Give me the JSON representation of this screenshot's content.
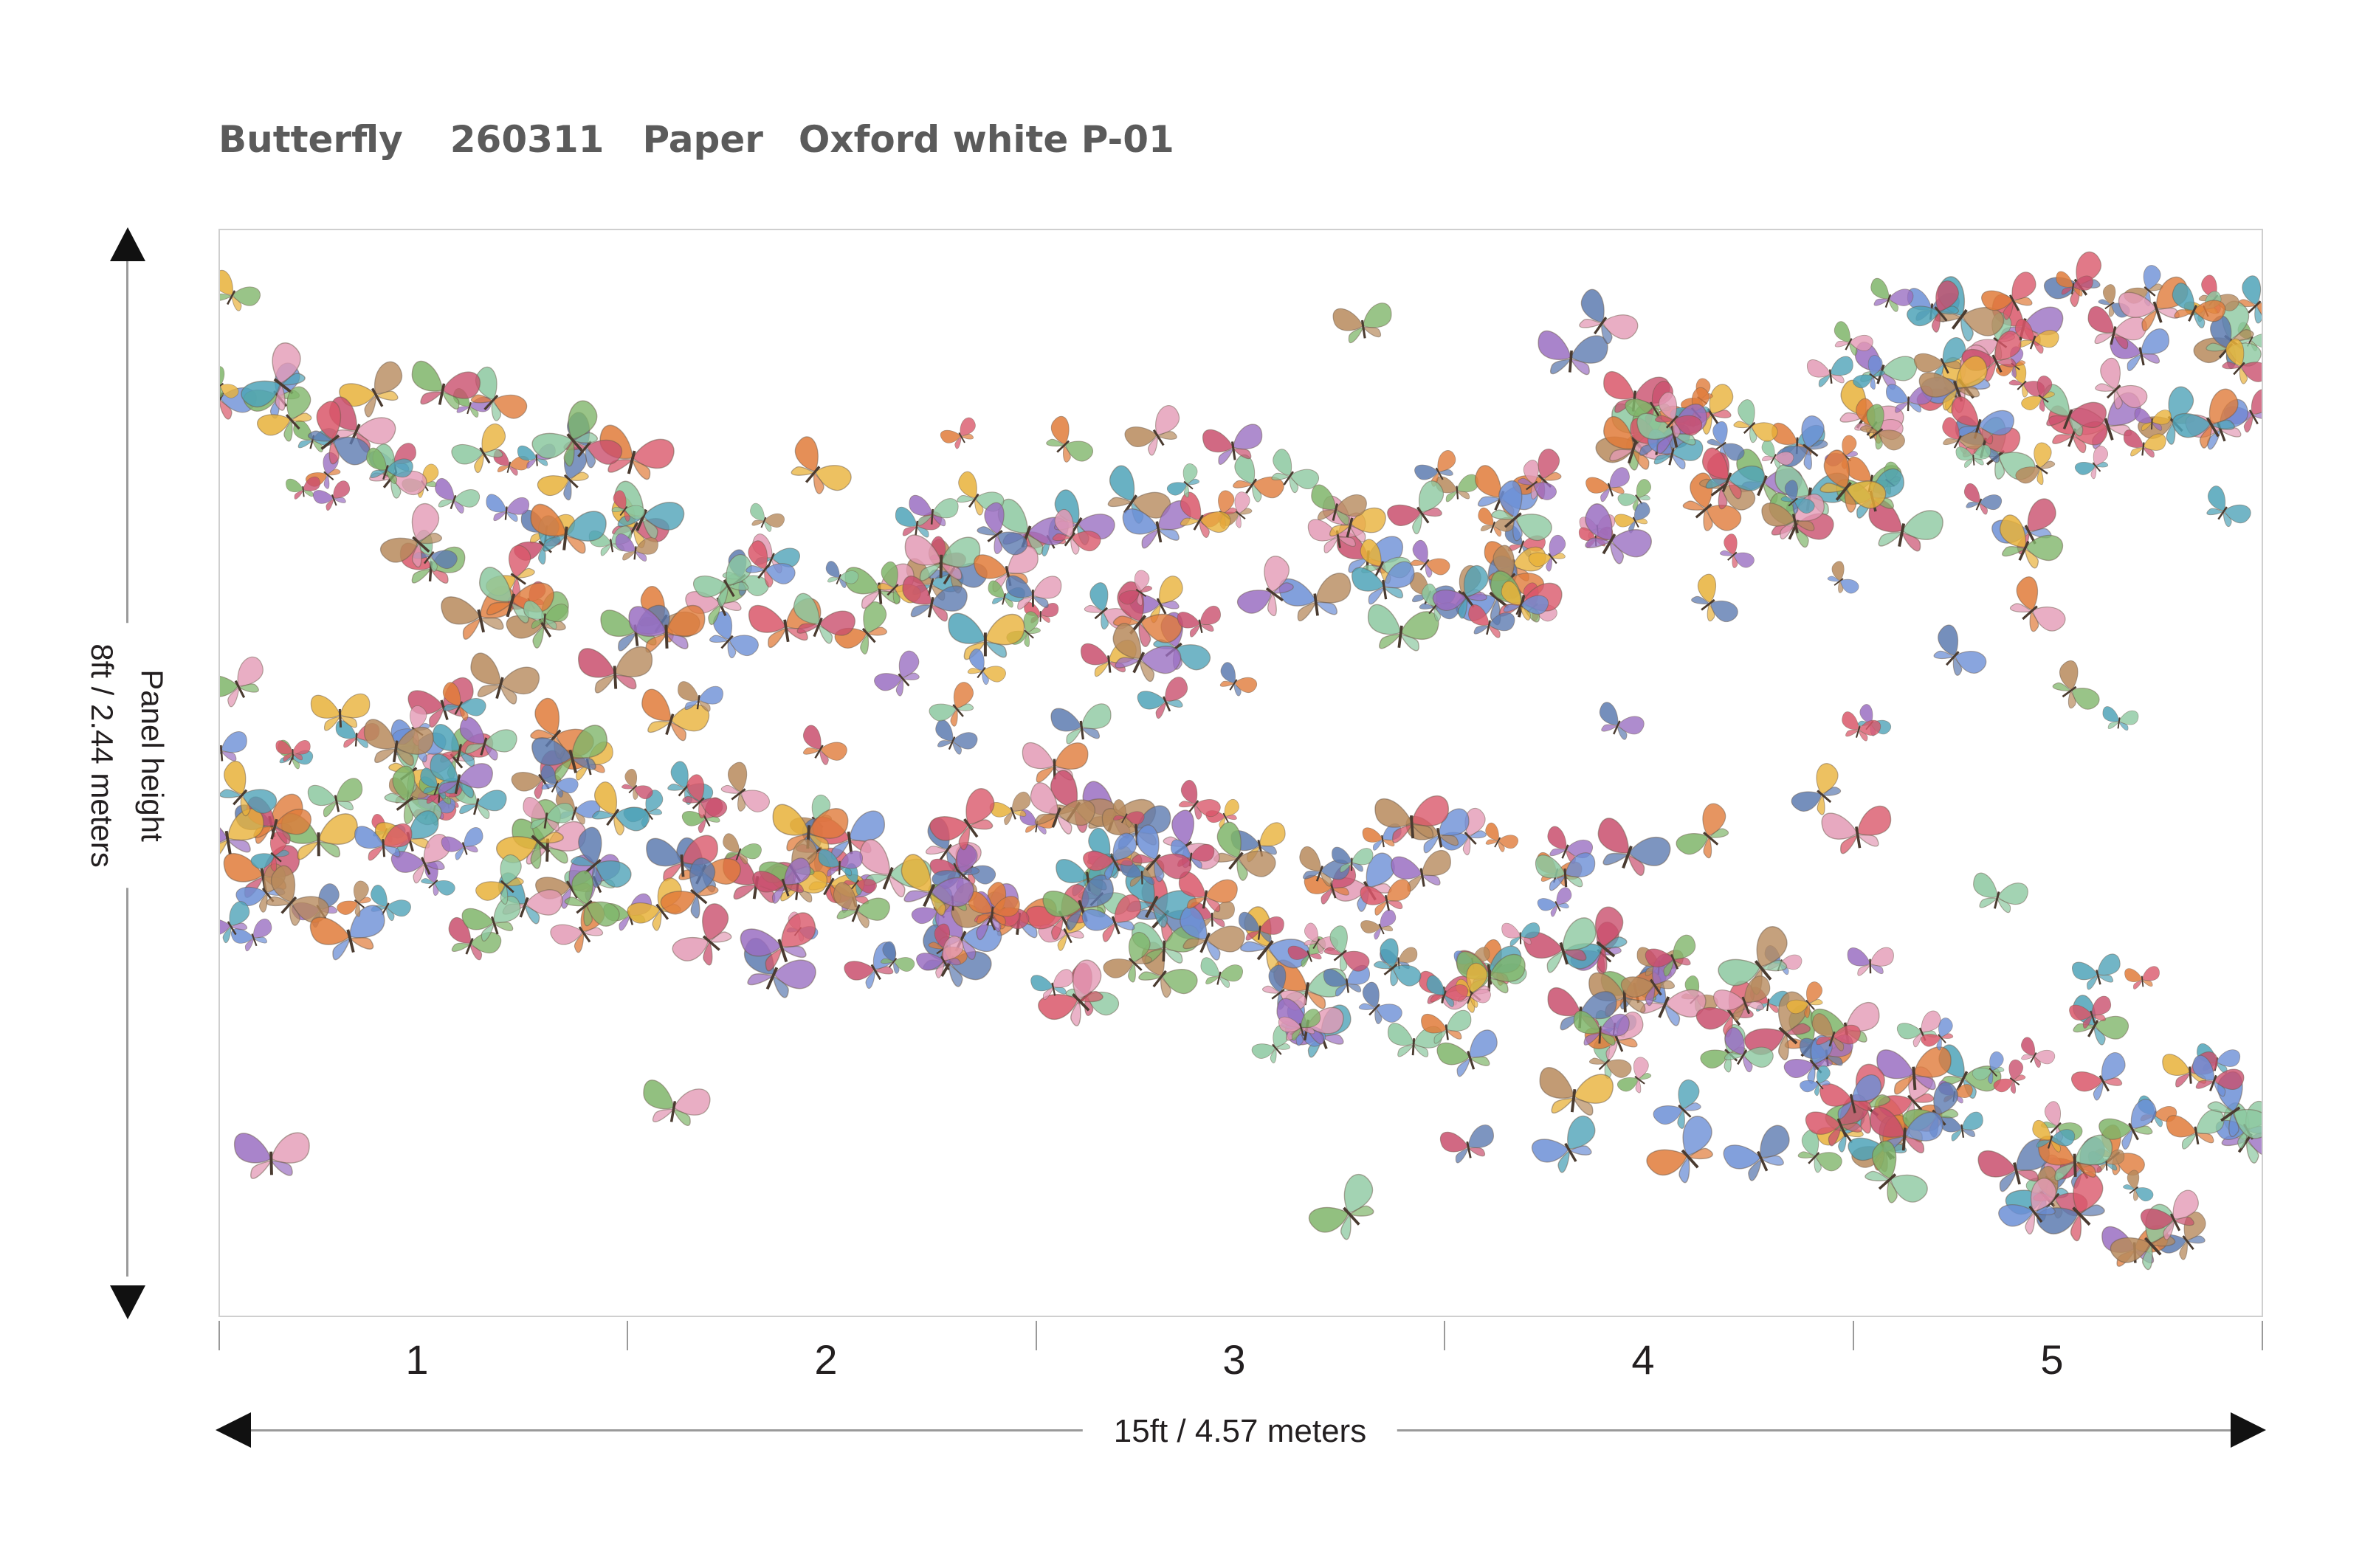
{
  "title": {
    "name": "Butterfly",
    "code": "260311",
    "material": "Paper",
    "colorway": "Oxford white P-01"
  },
  "vertical_dimension": {
    "line1": "Panel height",
    "line2": "8ft / 2.44 meters"
  },
  "horizontal_dimension": {
    "label": "15ft  / 4.57 meters"
  },
  "panels": [
    "1",
    "2",
    "3",
    "4",
    "5"
  ],
  "colors": {
    "title": "#5b5b5b",
    "border": "#cfcfcf",
    "line": "#9a9a9a",
    "arrow": "#111111",
    "butterflies": [
      "#c94f6d",
      "#e07b39",
      "#7fb56a",
      "#6c8fd6",
      "#9a6fc2",
      "#e8b13a",
      "#d9576a",
      "#4fa3b8",
      "#b78a5c",
      "#8cc8a0",
      "#e39ab5",
      "#5d7bb0"
    ]
  }
}
